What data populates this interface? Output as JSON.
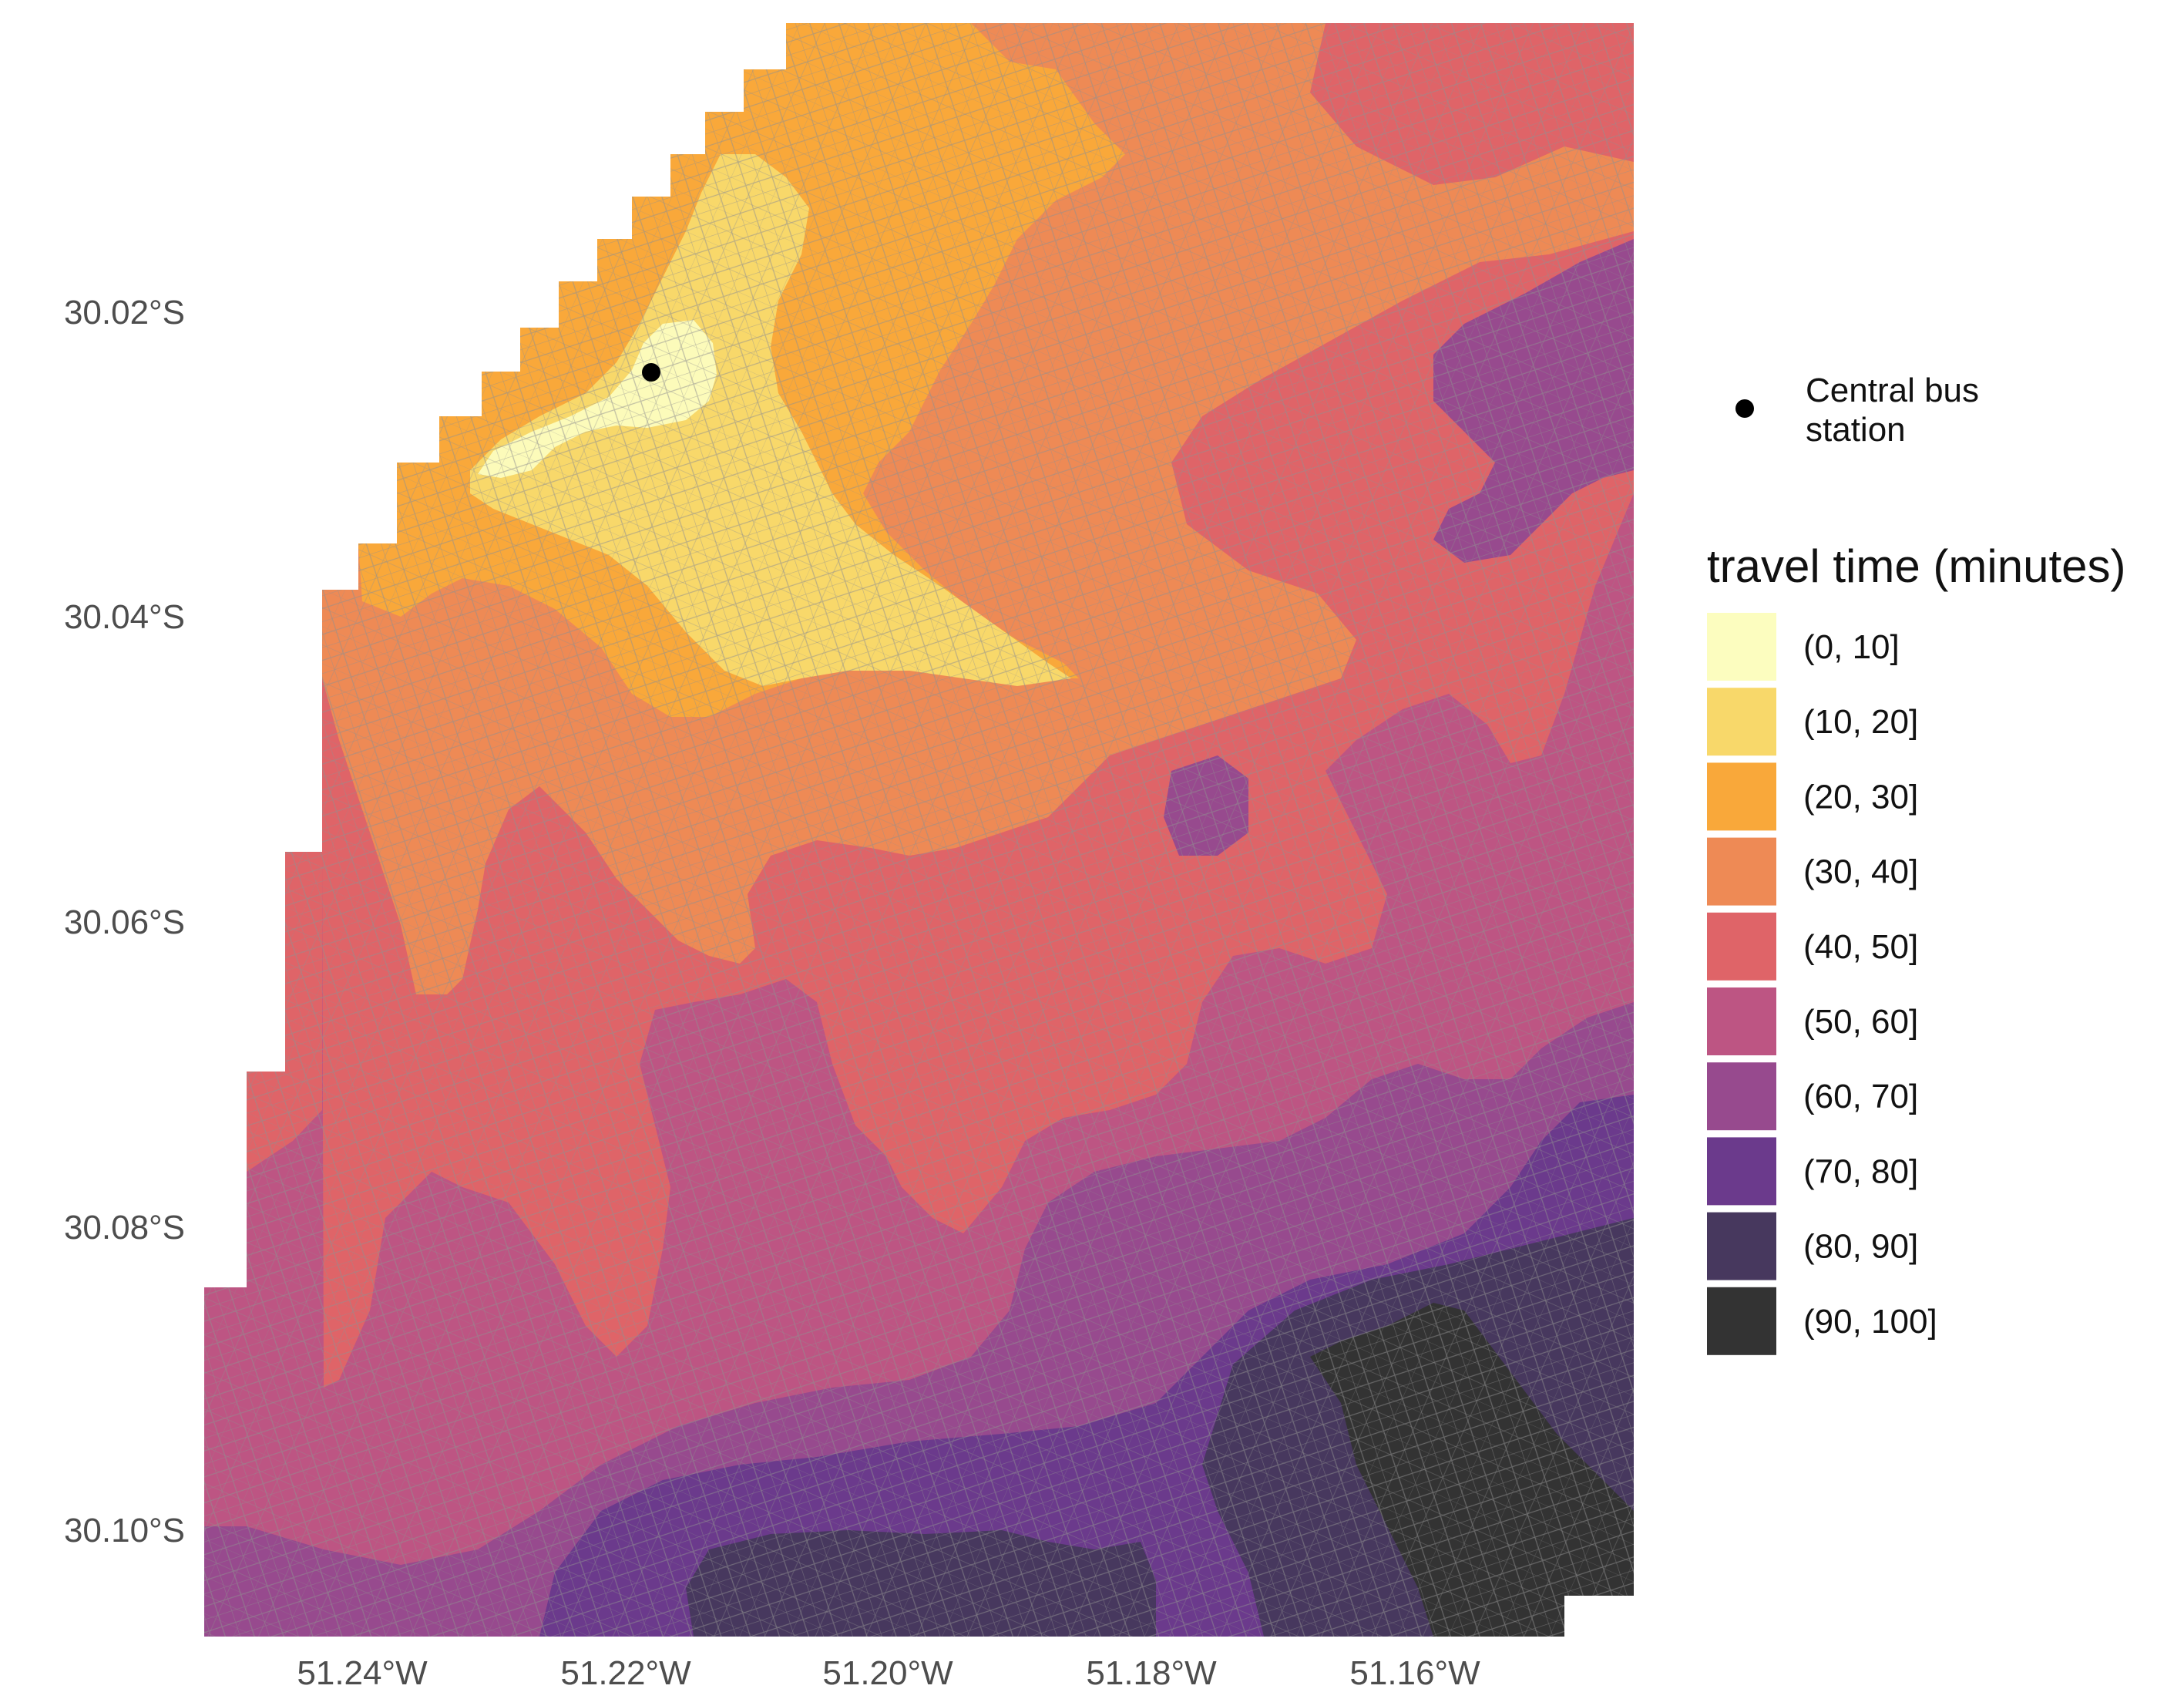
{
  "map": {
    "y_axis_labels": [
      "30.02°S",
      "30.04°S",
      "30.06°S",
      "30.08°S",
      "30.10°S"
    ],
    "x_axis_labels": [
      "51.24°W",
      "51.22°W",
      "51.20°W",
      "51.18°W",
      "51.16°W"
    ]
  },
  "point_legend": {
    "line1": "Central bus",
    "line2": "station",
    "color": "#000000"
  },
  "fill_legend": {
    "title": "travel time (minutes)",
    "items": [
      {
        "label": "(0, 10]",
        "color": "#FCFDBF"
      },
      {
        "label": "(10, 20]",
        "color": "#F8D86A"
      },
      {
        "label": "(20, 30]",
        "color": "#F9A83A"
      },
      {
        "label": "(30, 40]",
        "color": "#EE8A55"
      },
      {
        "label": "(40, 50]",
        "color": "#DF6468"
      },
      {
        "label": "(50, 60]",
        "color": "#BD5583"
      },
      {
        "label": "(60, 70]",
        "color": "#974A8E"
      },
      {
        "label": "(70, 80]",
        "color": "#6B3A8C"
      },
      {
        "label": "(80, 90]",
        "color": "#47385E"
      },
      {
        "label": "(90, 100]",
        "color": "#333333"
      }
    ]
  }
}
